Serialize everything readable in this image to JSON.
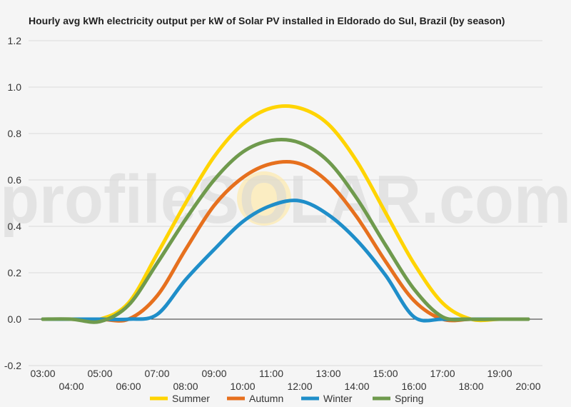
{
  "chart_data": {
    "type": "line",
    "title": "Hourly avg kWh electricity output per kW of Solar PV installed in Eldorado do Sul, Brazil (by season)",
    "xlabel": "",
    "ylabel": "",
    "ylim": [
      -0.2,
      1.2
    ],
    "y_ticks": [
      "-0.2",
      "0.0",
      "0.2",
      "0.4",
      "0.6",
      "0.8",
      "1.0",
      "1.2"
    ],
    "x_ticks": [
      "03:00",
      "04:00",
      "05:00",
      "06:00",
      "07:00",
      "08:00",
      "09:00",
      "10:00",
      "11:00",
      "12:00",
      "13:00",
      "14:00",
      "15:00",
      "16:00",
      "17:00",
      "18:00",
      "19:00",
      "20:00"
    ],
    "x": [
      3,
      4,
      5,
      6,
      7,
      8,
      9,
      10,
      11,
      12,
      13,
      14,
      15,
      16,
      17,
      18,
      19,
      20
    ],
    "grid": true,
    "legend_position": "bottom",
    "series": [
      {
        "name": "Summer",
        "color": "#ffd400",
        "values": [
          0.0,
          0.0,
          0.0,
          0.07,
          0.28,
          0.5,
          0.7,
          0.84,
          0.91,
          0.91,
          0.84,
          0.68,
          0.46,
          0.24,
          0.07,
          0.0,
          0.0,
          0.0
        ]
      },
      {
        "name": "Autumn",
        "color": "#e6701e",
        "values": [
          0.0,
          0.0,
          0.0,
          0.0,
          0.1,
          0.3,
          0.49,
          0.61,
          0.67,
          0.67,
          0.59,
          0.44,
          0.25,
          0.08,
          0.0,
          0.0,
          0.0,
          0.0
        ]
      },
      {
        "name": "Winter",
        "color": "#1f8ec9",
        "values": [
          0.0,
          0.0,
          0.0,
          0.0,
          0.02,
          0.17,
          0.3,
          0.42,
          0.49,
          0.51,
          0.45,
          0.34,
          0.19,
          0.01,
          0.0,
          0.0,
          0.0,
          0.0
        ]
      },
      {
        "name": "Spring",
        "color": "#6f9a4d",
        "values": [
          0.0,
          0.0,
          -0.01,
          0.06,
          0.24,
          0.43,
          0.6,
          0.72,
          0.77,
          0.76,
          0.68,
          0.52,
          0.32,
          0.13,
          0.01,
          0.0,
          0.0,
          0.0
        ]
      }
    ]
  },
  "watermark": {
    "text": "profileSOLAR.com",
    "sun_color": "#ffe8a0"
  }
}
